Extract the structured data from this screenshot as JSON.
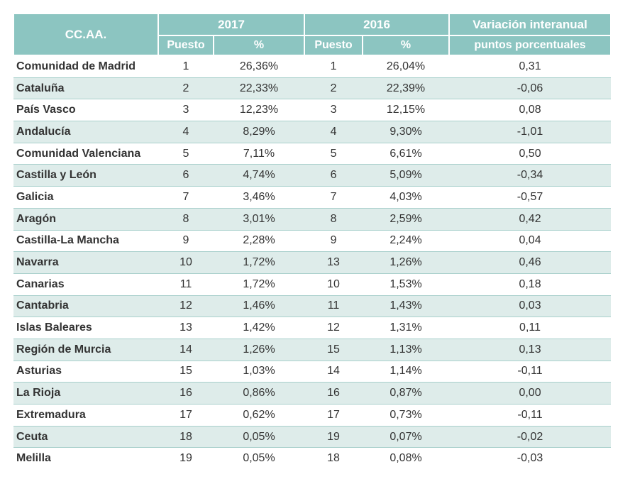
{
  "header": {
    "region": "CC.AA.",
    "year_a": "2017",
    "year_b": "2016",
    "rank_a": "Puesto",
    "pct_a": "%",
    "rank_b": "Puesto",
    "pct_b": "%",
    "variation": [
      "Variación interanual",
      "puntos porcentuales"
    ]
  },
  "table": {
    "rows": [
      [
        "Comunidad de Madrid",
        "1",
        "26,36%",
        "1",
        "26,04%",
        "0,31"
      ],
      [
        "Cataluña",
        "2",
        "22,33%",
        "2",
        "22,39%",
        "-0,06"
      ],
      [
        "País Vasco",
        "3",
        "12,23%",
        "3",
        "12,15%",
        "0,08"
      ],
      [
        "Andalucía",
        "4",
        "8,29%",
        "4",
        "9,30%",
        "-1,01"
      ],
      [
        "Comunidad Valenciana",
        "5",
        "7,11%",
        "5",
        "6,61%",
        "0,50"
      ],
      [
        "Castilla y León",
        "6",
        "4,74%",
        "6",
        "5,09%",
        "-0,34"
      ],
      [
        "Galicia",
        "7",
        "3,46%",
        "7",
        "4,03%",
        "-0,57"
      ],
      [
        "Aragón",
        "8",
        "3,01%",
        "8",
        "2,59%",
        "0,42"
      ],
      [
        "Castilla-La Mancha",
        "9",
        "2,28%",
        "9",
        "2,24%",
        "0,04"
      ],
      [
        "Navarra",
        "10",
        "1,72%",
        "13",
        "1,26%",
        "0,46"
      ],
      [
        "Canarias",
        "11",
        "1,72%",
        "10",
        "1,53%",
        "0,18"
      ],
      [
        "Cantabria",
        "12",
        "1,46%",
        "11",
        "1,43%",
        "0,03"
      ],
      [
        "Islas Baleares",
        "13",
        "1,42%",
        "12",
        "1,31%",
        "0,11"
      ],
      [
        "Región de Murcia",
        "14",
        "1,26%",
        "15",
        "1,13%",
        "0,13"
      ],
      [
        "Asturias",
        "15",
        "1,03%",
        "14",
        "1,14%",
        "-0,11"
      ],
      [
        "La Rioja",
        "16",
        "0,86%",
        "16",
        "0,87%",
        "0,00"
      ],
      [
        "Extremadura",
        "17",
        "0,62%",
        "17",
        "0,73%",
        "-0,11"
      ],
      [
        "Ceuta",
        "18",
        "0,05%",
        "19",
        "0,07%",
        "-0,02"
      ],
      [
        "Melilla",
        "19",
        "0,05%",
        "18",
        "0,08%",
        "-0,03"
      ]
    ]
  }
}
